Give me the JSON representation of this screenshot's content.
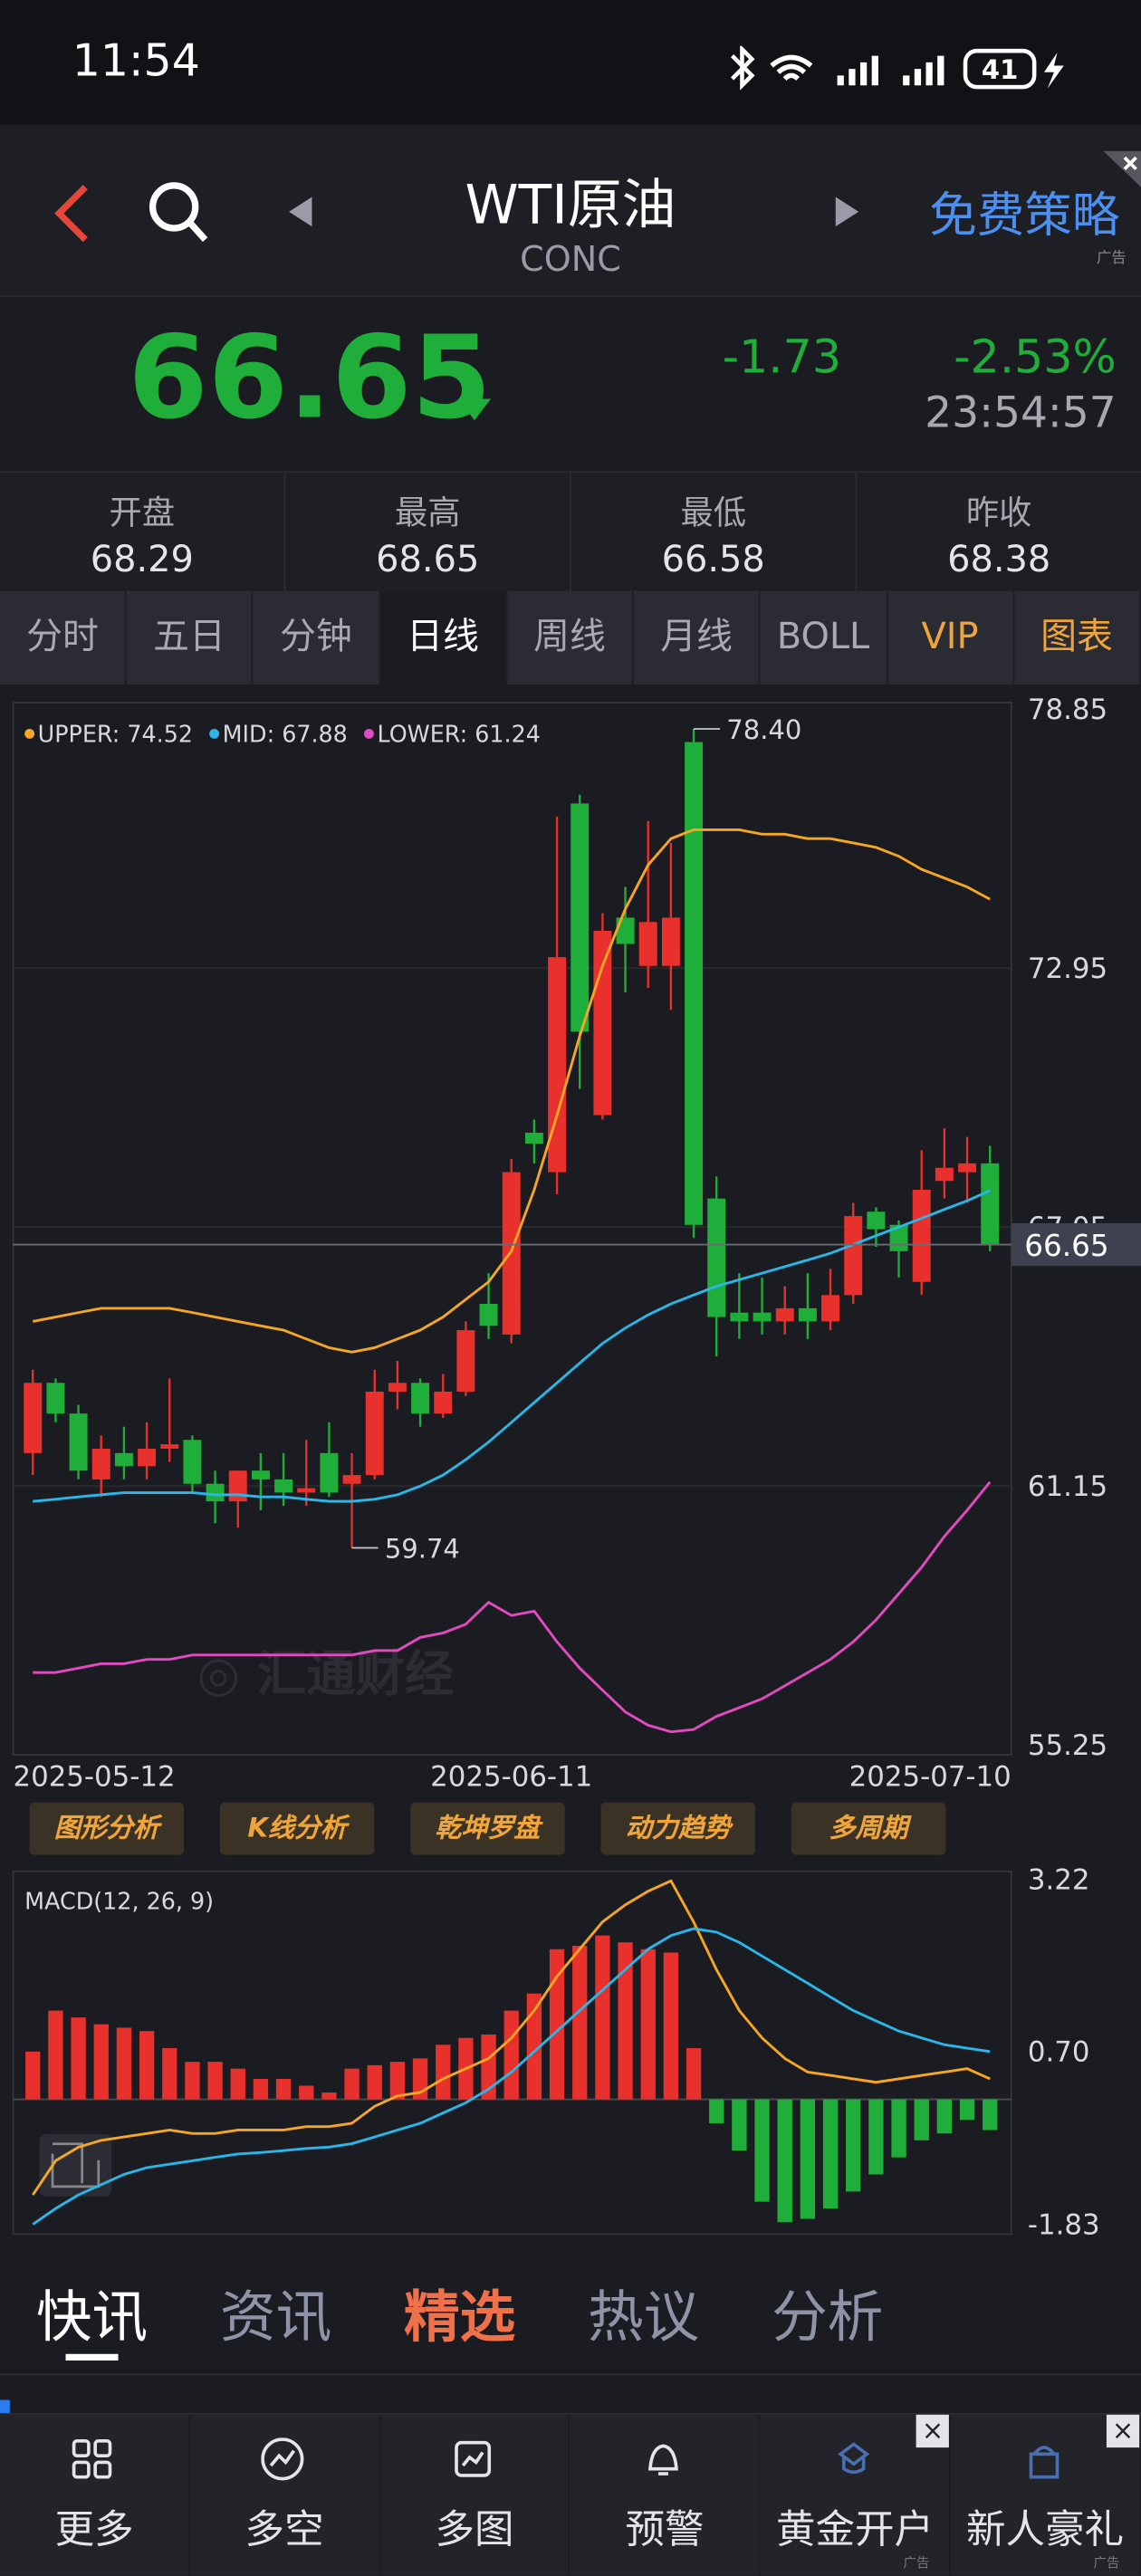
{
  "status_bar": {
    "time": "11:54",
    "battery": "41"
  },
  "header": {
    "title": "WTI原油",
    "subtitle": "CONC",
    "promo": "免费策略",
    "ad": "广告"
  },
  "quote": {
    "price": "66.65",
    "change": "-1.73",
    "change_pct": "-2.53%",
    "time": "23:54:57"
  },
  "stats": [
    {
      "label": "开盘",
      "value": "68.29"
    },
    {
      "label": "最高",
      "value": "68.65"
    },
    {
      "label": "最低",
      "value": "66.58"
    },
    {
      "label": "昨收",
      "value": "68.38"
    }
  ],
  "period_tabs": [
    "分时",
    "五日",
    "分钟",
    "日线",
    "周线",
    "月线",
    "BOLL",
    "VIP",
    "图表"
  ],
  "active_tab": "日线",
  "kline": {
    "type": "candlestick",
    "categories": [
      "2025-05-12",
      null,
      null,
      null,
      null,
      null,
      null,
      null,
      null,
      null,
      null,
      null,
      null,
      null,
      null,
      null,
      null,
      null,
      null,
      null,
      null,
      "2025-06-11",
      null,
      null,
      null,
      null,
      null,
      null,
      null,
      null,
      null,
      null,
      null,
      null,
      null,
      null,
      null,
      null,
      null,
      null,
      null,
      null,
      "2025-07-10"
    ],
    "open": [
      61.9,
      63.5,
      62.8,
      61.3,
      61.9,
      61.6,
      62.0,
      62.2,
      61.2,
      60.8,
      61.5,
      61.3,
      61.0,
      61.9,
      61.2,
      61.4,
      63.3,
      63.5,
      62.8,
      63.3,
      65.3,
      64.6,
      69.2,
      68.3,
      76.7,
      69.6,
      74.1,
      73.0,
      73.0,
      78.1,
      67.7,
      65.1,
      65.1,
      64.9,
      65.2,
      64.9,
      65.5,
      67.4,
      67.1,
      65.8,
      68.1,
      68.3,
      68.5
    ],
    "high": [
      63.8,
      63.6,
      63.0,
      62.3,
      62.5,
      62.6,
      63.6,
      62.3,
      61.5,
      61.5,
      61.9,
      61.9,
      62.2,
      62.6,
      61.9,
      63.8,
      64.0,
      63.6,
      63.7,
      64.9,
      66.0,
      68.6,
      69.5,
      76.4,
      76.9,
      74.2,
      74.8,
      76.3,
      75.8,
      78.4,
      68.2,
      66.0,
      65.9,
      65.7,
      66.0,
      66.1,
      67.6,
      67.5,
      67.2,
      68.8,
      69.3,
      69.1,
      68.9
    ],
    "low": [
      61.4,
      62.6,
      61.3,
      60.9,
      61.3,
      61.3,
      61.7,
      61.0,
      60.3,
      60.2,
      60.6,
      60.7,
      60.7,
      60.9,
      59.74,
      61.3,
      62.9,
      62.5,
      62.7,
      63.2,
      64.5,
      64.4,
      68.5,
      67.8,
      70.2,
      69.5,
      72.4,
      72.5,
      72.0,
      66.8,
      64.1,
      64.5,
      64.6,
      64.6,
      64.5,
      64.7,
      65.3,
      66.6,
      65.9,
      65.5,
      67.7,
      67.6,
      66.5
    ],
    "close": [
      63.5,
      62.8,
      61.5,
      62.0,
      61.6,
      62.0,
      62.1,
      61.2,
      60.8,
      61.5,
      61.3,
      61.0,
      61.1,
      61.0,
      61.4,
      63.3,
      63.5,
      62.8,
      63.3,
      64.7,
      64.8,
      68.3,
      68.95,
      73.2,
      71.5,
      73.8,
      73.5,
      74.0,
      74.1,
      67.1,
      65.0,
      64.9,
      64.9,
      65.2,
      64.9,
      65.5,
      67.3,
      67.0,
      66.5,
      67.9,
      68.4,
      68.5,
      66.65
    ],
    "up_color": "#e8302c",
    "down_color": "#1fae3a",
    "series": [
      {
        "name": "UPPER: 74.52",
        "color": "#f5a623",
        "values": [
          64.9,
          65.0,
          65.1,
          65.2,
          65.2,
          65.2,
          65.2,
          65.1,
          65.0,
          64.9,
          64.8,
          64.7,
          64.5,
          64.3,
          64.2,
          64.3,
          64.5,
          64.7,
          65.0,
          65.4,
          65.8,
          66.5,
          67.9,
          69.6,
          71.4,
          73.0,
          74.3,
          75.3,
          75.9,
          76.1,
          76.1,
          76.1,
          76.0,
          76.0,
          75.9,
          75.9,
          75.8,
          75.7,
          75.5,
          75.2,
          75.0,
          74.8,
          74.52
        ]
      },
      {
        "name": "MID: 67.88",
        "color": "#29b6e8",
        "values": [
          60.8,
          60.85,
          60.9,
          60.95,
          61.0,
          61.0,
          61.0,
          61.0,
          60.95,
          60.95,
          60.9,
          60.9,
          60.85,
          60.8,
          60.8,
          60.85,
          60.95,
          61.15,
          61.4,
          61.75,
          62.15,
          62.6,
          63.05,
          63.5,
          63.95,
          64.4,
          64.75,
          65.05,
          65.3,
          65.5,
          65.7,
          65.85,
          66.0,
          66.15,
          66.3,
          66.45,
          66.65,
          66.85,
          67.05,
          67.25,
          67.45,
          67.65,
          67.88
        ]
      },
      {
        "name": "LOWER: 61.24",
        "color": "#e24bbf",
        "values": [
          56.9,
          56.9,
          57.0,
          57.1,
          57.1,
          57.2,
          57.2,
          57.3,
          57.3,
          57.3,
          57.3,
          57.3,
          57.3,
          57.3,
          57.3,
          57.4,
          57.4,
          57.7,
          57.8,
          58.0,
          58.5,
          58.2,
          58.3,
          57.6,
          57.0,
          56.5,
          56.0,
          55.7,
          55.55,
          55.6,
          55.9,
          56.1,
          56.3,
          56.6,
          56.9,
          57.2,
          57.6,
          58.1,
          58.7,
          59.3,
          60.0,
          60.6,
          61.24
        ]
      }
    ],
    "ylim": [
      55.25,
      78.85
    ],
    "yticks": [
      78.85,
      72.95,
      67.05,
      61.15,
      55.25
    ],
    "grid": true,
    "last_price": {
      "value": 66.65,
      "label": "66.65"
    },
    "annotations": [
      {
        "value": 78.4,
        "label": "78.40"
      },
      {
        "value": 59.74,
        "label": "59.74"
      }
    ]
  },
  "tools": [
    "图形分析",
    "K线分析",
    "乾坤罗盘",
    "动力趋势",
    "多周期"
  ],
  "macd": {
    "type": "macd",
    "title": "MACD(12, 26, 9)",
    "histogram": [
      0.7,
      1.3,
      1.2,
      1.1,
      1.05,
      1.0,
      0.75,
      0.55,
      0.55,
      0.45,
      0.3,
      0.3,
      0.2,
      0.1,
      0.45,
      0.5,
      0.55,
      0.6,
      0.8,
      0.9,
      0.95,
      1.3,
      1.55,
      2.2,
      2.25,
      2.4,
      2.3,
      2.2,
      2.15,
      0.75,
      -0.35,
      -0.75,
      -1.5,
      -1.8,
      -1.75,
      -1.6,
      -1.35,
      -1.1,
      -0.85,
      -0.6,
      -0.5,
      -0.3,
      -0.45
    ],
    "up_color": "#e8302c",
    "down_color": "#1fae3a",
    "series": [
      {
        "color": "#f5a623",
        "values": [
          -1.4,
          -0.9,
          -0.7,
          -0.6,
          -0.55,
          -0.5,
          -0.45,
          -0.5,
          -0.5,
          -0.45,
          -0.45,
          -0.45,
          -0.4,
          -0.4,
          -0.35,
          -0.1,
          0.05,
          0.1,
          0.3,
          0.45,
          0.6,
          0.9,
          1.3,
          1.8,
          2.2,
          2.6,
          2.85,
          3.05,
          3.2,
          2.6,
          1.9,
          1.3,
          0.9,
          0.6,
          0.4,
          0.35,
          0.3,
          0.25,
          0.3,
          0.35,
          0.4,
          0.45,
          0.3
        ]
      },
      {
        "color": "#29b6e8",
        "values": [
          -1.83,
          -1.6,
          -1.4,
          -1.25,
          -1.1,
          -1.0,
          -0.95,
          -0.9,
          -0.85,
          -0.8,
          -0.78,
          -0.75,
          -0.72,
          -0.7,
          -0.65,
          -0.55,
          -0.45,
          -0.35,
          -0.2,
          -0.05,
          0.15,
          0.4,
          0.7,
          1.0,
          1.3,
          1.6,
          1.9,
          2.2,
          2.4,
          2.5,
          2.45,
          2.3,
          2.1,
          1.9,
          1.7,
          1.5,
          1.3,
          1.15,
          1.0,
          0.9,
          0.8,
          0.75,
          0.7
        ]
      }
    ],
    "ylim": [
      -1.83,
      3.22
    ],
    "yticks": [
      3.22,
      {
        "value": 0.7,
        "label": "0.70"
      },
      -1.83
    ]
  },
  "news_tabs": [
    "快讯",
    "资讯",
    "精选",
    "热议",
    "分析"
  ],
  "bottom_nav": [
    {
      "label": "更多"
    },
    {
      "label": "多空"
    },
    {
      "label": "多图"
    },
    {
      "label": "预警"
    },
    {
      "label": "黄金开户",
      "ad": "广告"
    },
    {
      "label": "新人豪礼",
      "ad": "广告"
    }
  ]
}
